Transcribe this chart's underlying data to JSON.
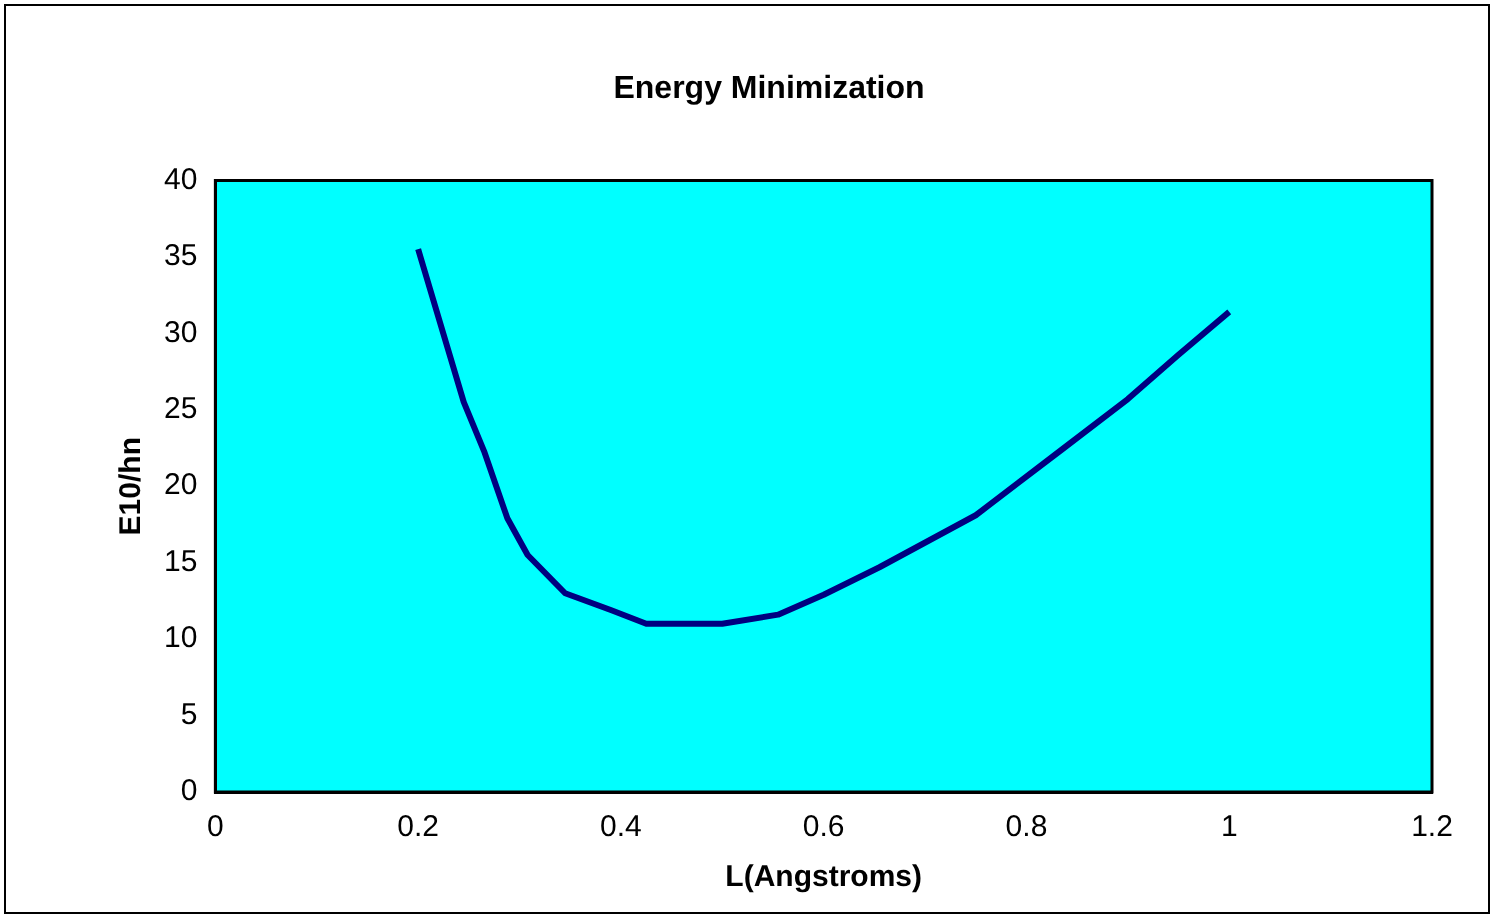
{
  "chart_data": {
    "type": "line",
    "title": "Energy Minimization",
    "xlabel": "L(Angstroms)",
    "ylabel": "E10/hn",
    "x": [
      0.2,
      0.245,
      0.265,
      0.288,
      0.308,
      0.345,
      0.39,
      0.425,
      0.5,
      0.555,
      0.6,
      0.655,
      0.75,
      0.835,
      0.9,
      0.95,
      1.0
    ],
    "series": [
      {
        "color": "#000080",
        "values": [
          35.5,
          25.5,
          22.3,
          17.9,
          15.5,
          13.0,
          11.9,
          11.0,
          11.0,
          11.6,
          12.9,
          14.7,
          18.1,
          22.4,
          25.7,
          28.6,
          31.4
        ]
      }
    ],
    "xlim": [
      0,
      1.2
    ],
    "xticks": [
      0,
      0.2,
      0.4,
      0.6,
      0.8,
      1,
      1.2
    ],
    "ylim": [
      0,
      40
    ],
    "yticks": [
      0,
      5,
      10,
      15,
      20,
      25,
      30,
      35,
      40
    ],
    "grid": false,
    "legend": false,
    "marker": "none",
    "line_style": "solid"
  }
}
